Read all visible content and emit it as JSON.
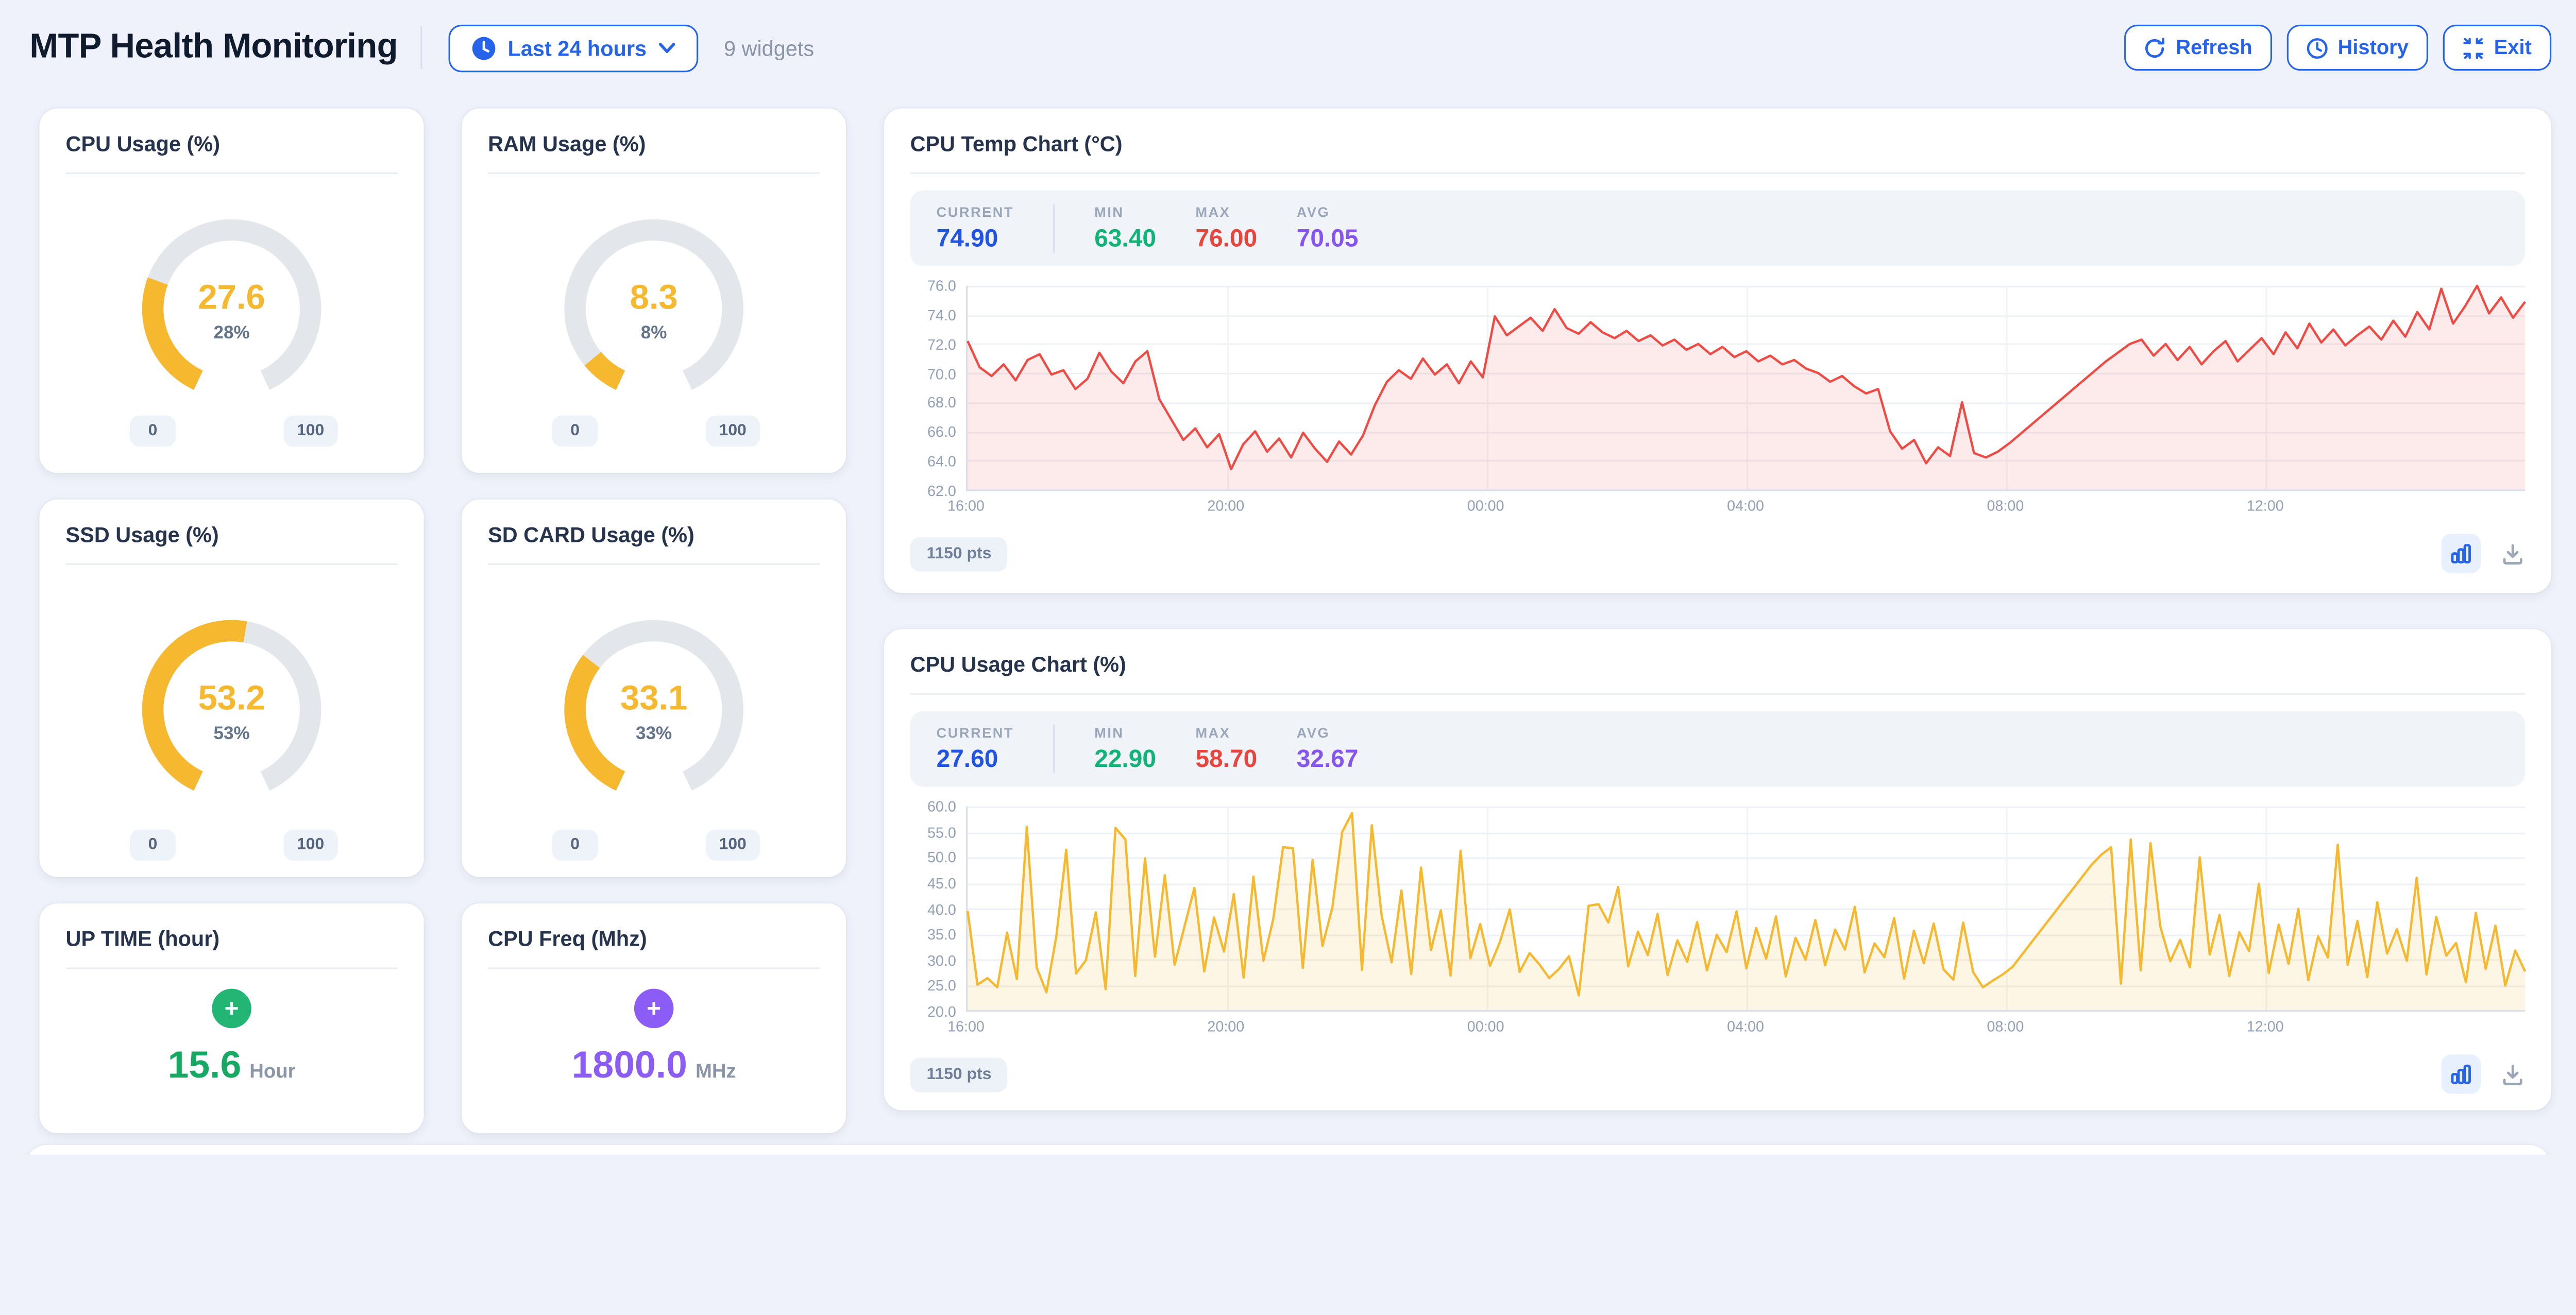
{
  "header": {
    "title": "MTP Health Monitoring",
    "time_range": "Last 24 hours",
    "widgets_count": "9 widgets",
    "refresh_label": "Refresh",
    "history_label": "History",
    "exit_label": "Exit"
  },
  "colors": {
    "accent_blue": "#2563eb",
    "gauge_yellow": "#f5b82e",
    "gauge_track": "#e3e6eb",
    "green": "#17a864",
    "purple": "#8b5cf6",
    "red": "#e8453c",
    "stat_blue": "#2254e3",
    "page_background": "#eff2fa"
  },
  "stats_labels": {
    "current": "CURRENT",
    "min": "MIN",
    "max": "MAX",
    "avg": "AVG"
  },
  "gauges": [
    {
      "title": "CPU Usage (%)",
      "value": "27.6",
      "percent": 27.6,
      "percent_label": "28%",
      "min_label": "0",
      "max_label": "100"
    },
    {
      "title": "RAM Usage (%)",
      "value": "8.3",
      "percent": 8.3,
      "percent_label": "8%",
      "min_label": "0",
      "max_label": "100"
    },
    {
      "title": "SSD Usage (%)",
      "value": "53.2",
      "percent": 53.2,
      "percent_label": "53%",
      "min_label": "0",
      "max_label": "100"
    },
    {
      "title": "SD CARD Usage (%)",
      "value": "33.1",
      "percent": 33.1,
      "percent_label": "33%",
      "min_label": "0",
      "max_label": "100"
    }
  ],
  "metric_cards": [
    {
      "title": "UP TIME (hour)",
      "value": "15.6",
      "unit": "Hour",
      "icon": "plus-circle-icon",
      "accent": "#17a864"
    },
    {
      "title": "CPU Freq (Mhz)",
      "value": "1800.0",
      "unit": "MHz",
      "icon": "plus-circle-icon",
      "accent": "#8b5cf6"
    }
  ],
  "chart_data": [
    {
      "type": "area",
      "title": "CPU Temp Chart (°C)",
      "points_label": "1150 pts",
      "stats": {
        "current": "74.90",
        "min": "63.40",
        "max": "76.00",
        "avg": "70.05"
      },
      "color": "#ee4b45",
      "fill": "rgba(238,75,69,0.11)",
      "ylim": [
        62,
        76
      ],
      "yticks": [
        "62.0",
        "64.0",
        "66.0",
        "68.0",
        "70.0",
        "72.0",
        "74.0",
        "76.0"
      ],
      "xticks": [
        "16:00",
        "20:00",
        "00:00",
        "04:00",
        "08:00",
        "12:00"
      ],
      "x_span_hours": 24,
      "grid": "on",
      "values": [
        72.2,
        70.4,
        69.8,
        70.6,
        69.5,
        70.9,
        71.3,
        69.9,
        70.2,
        68.9,
        69.6,
        71.4,
        70.1,
        69.3,
        70.8,
        71.5,
        68.2,
        66.8,
        65.4,
        66.2,
        64.9,
        65.8,
        63.4,
        65.1,
        66.0,
        64.6,
        65.5,
        64.2,
        65.9,
        64.8,
        63.9,
        65.3,
        64.4,
        65.7,
        67.8,
        69.4,
        70.2,
        69.6,
        71.0,
        69.9,
        70.6,
        69.3,
        70.8,
        69.7,
        73.9,
        72.6,
        73.2,
        73.8,
        72.9,
        74.4,
        73.1,
        72.7,
        73.5,
        72.8,
        72.4,
        72.9,
        72.2,
        72.6,
        71.9,
        72.3,
        71.6,
        72.0,
        71.3,
        71.8,
        71.1,
        71.5,
        70.8,
        71.2,
        70.6,
        70.9,
        70.3,
        70.0,
        69.4,
        69.8,
        69.1,
        68.6,
        68.9,
        66.0,
        64.8,
        65.4,
        63.8,
        64.9,
        64.3,
        68.0,
        64.5,
        64.2,
        64.6,
        65.2,
        65.9,
        66.6,
        67.3,
        68.0,
        68.7,
        69.4,
        70.1,
        70.8,
        71.4,
        72.0,
        72.3,
        71.2,
        72.0,
        70.9,
        71.8,
        70.6,
        71.5,
        72.2,
        70.8,
        71.6,
        72.4,
        71.3,
        72.8,
        71.7,
        73.4,
        72.1,
        73.0,
        71.9,
        72.6,
        73.2,
        72.3,
        73.6,
        72.5,
        74.2,
        73.0,
        75.8,
        73.4,
        74.6,
        76.0,
        74.1,
        75.2,
        73.8,
        74.9
      ]
    },
    {
      "type": "area",
      "title": "CPU Usage Chart (%)",
      "points_label": "1150 pts",
      "stats": {
        "current": "27.60",
        "min": "22.90",
        "max": "58.70",
        "avg": "32.67"
      },
      "color": "#f5b82e",
      "fill": "rgba(245,184,46,0.13)",
      "ylim": [
        20,
        60
      ],
      "yticks": [
        "20.0",
        "25.0",
        "30.0",
        "35.0",
        "40.0",
        "45.0",
        "50.0",
        "55.0",
        "60.0"
      ],
      "xticks": [
        "16:00",
        "20:00",
        "00:00",
        "04:00",
        "08:00",
        "12:00"
      ],
      "x_span_hours": 24,
      "grid": "on",
      "values": [
        39.5,
        25.0,
        26.3,
        24.5,
        35.2,
        26.1,
        56.0,
        28.4,
        23.5,
        34.6,
        51.5,
        27.2,
        29.8,
        39.2,
        24.1,
        55.8,
        53.5,
        26.7,
        49.8,
        30.5,
        46.5,
        28.9,
        36.4,
        44.0,
        27.6,
        38.2,
        31.5,
        42.8,
        26.4,
        46.2,
        29.7,
        37.8,
        52.0,
        51.8,
        28.3,
        49.5,
        32.6,
        40.2,
        55.0,
        58.7,
        27.9,
        56.3,
        38.6,
        29.4,
        43.5,
        27.1,
        48.0,
        31.8,
        39.6,
        26.8,
        51.3,
        30.2,
        36.9,
        28.7,
        33.4,
        39.8,
        27.5,
        31.2,
        29.0,
        26.3,
        28.1,
        30.6,
        22.9,
        40.5,
        40.8,
        37.2,
        44.2,
        28.6,
        35.4,
        30.8,
        38.9,
        26.9,
        33.7,
        29.5,
        37.3,
        27.8,
        34.8,
        31.4,
        39.4,
        28.2,
        36.1,
        30.1,
        38.4,
        26.6,
        34.2,
        29.9,
        37.7,
        28.8,
        35.8,
        31.9,
        40.3,
        27.4,
        33.1,
        30.4,
        38.1,
        26.2,
        35.6,
        29.2,
        37.0,
        28.0,
        26.0,
        37.2,
        27.5,
        24.5,
        25.8,
        27.0,
        28.5,
        31.0,
        33.5,
        36.0,
        38.5,
        41.0,
        43.5,
        46.0,
        48.5,
        50.5,
        52.0,
        25.2,
        53.5,
        27.8,
        52.8,
        36.4,
        29.6,
        33.8,
        28.4,
        50.0,
        30.9,
        38.7,
        26.7,
        35.3,
        31.6,
        44.8,
        27.3,
        36.8,
        29.1,
        39.9,
        25.9,
        34.5,
        30.3,
        52.5,
        28.9,
        37.5,
        26.5,
        41.2,
        31.1,
        35.9,
        29.7,
        46.0,
        27.0,
        38.3,
        30.7,
        33.2,
        25.5,
        39.1,
        28.1,
        36.6,
        24.8,
        31.7,
        27.6
      ]
    }
  ]
}
